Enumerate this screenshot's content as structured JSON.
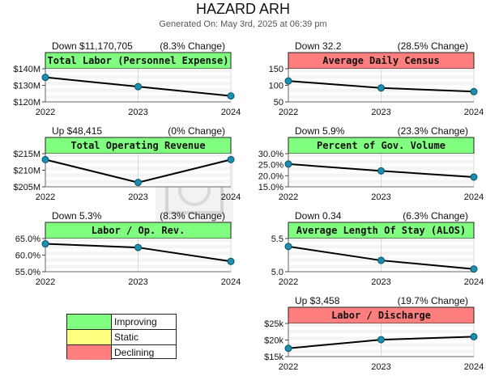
{
  "header": {
    "title": "HAZARD ARH",
    "subtitle": "Generated On: May 3rd, 2025 at 06:39 pm"
  },
  "legend": [
    {
      "label": "Improving",
      "color": "#80ff80"
    },
    {
      "label": "Static",
      "color": "#ffff80"
    },
    {
      "label": "Declining",
      "color": "#ff7f7f"
    }
  ],
  "colors": {
    "improving": "#80ff80",
    "declining": "#ff7f7f",
    "point": "#1a8fb0",
    "line": "#000000"
  },
  "chart_data": [
    {
      "id": "total-labor",
      "type": "line",
      "title": "Total Labor (Personnel Expense)",
      "status": "improving",
      "change_text": "Down $11,170,705",
      "pct_text": "(8.3% Change)",
      "categories": [
        "2022",
        "2023",
        "2024"
      ],
      "values": [
        134.8,
        129.2,
        123.6
      ],
      "ylim": [
        120,
        140
      ],
      "yticks": [
        {
          "value": 140,
          "label": "$140M"
        },
        {
          "value": 130,
          "label": "$130M"
        },
        {
          "value": 120,
          "label": "$120M"
        }
      ]
    },
    {
      "id": "average-daily-census",
      "type": "line",
      "title": "Average Daily Census",
      "status": "declining",
      "change_text": "Down 32.2",
      "pct_text": "(28.5% Change)",
      "categories": [
        "2022",
        "2023",
        "2024"
      ],
      "values": [
        113,
        92,
        81
      ],
      "ylim": [
        50,
        150
      ],
      "yticks": [
        {
          "value": 150,
          "label": "150"
        },
        {
          "value": 100,
          "label": "100"
        },
        {
          "value": 50,
          "label": "50"
        }
      ]
    },
    {
      "id": "total-operating-revenue",
      "type": "line",
      "title": "Total Operating Revenue",
      "status": "improving",
      "change_text": "Up $48,415",
      "pct_text": "(0% Change)",
      "categories": [
        "2022",
        "2023",
        "2024"
      ],
      "values": [
        213.2,
        206.3,
        213.2
      ],
      "ylim": [
        205,
        215
      ],
      "yticks": [
        {
          "value": 215,
          "label": "$215M"
        },
        {
          "value": 210,
          "label": "$210M"
        },
        {
          "value": 205,
          "label": "$205M"
        }
      ]
    },
    {
      "id": "percent-gov-volume",
      "type": "line",
      "title": "Percent of Gov. Volume",
      "status": "improving",
      "change_text": "Down 5.9%",
      "pct_text": "(23.3% Change)",
      "categories": [
        "2022",
        "2023",
        "2024"
      ],
      "values": [
        25.3,
        22.2,
        19.4
      ],
      "ylim": [
        15,
        30
      ],
      "yticks": [
        {
          "value": 30,
          "label": "30.0%"
        },
        {
          "value": 25,
          "label": "25.0%"
        },
        {
          "value": 20,
          "label": "20.0%"
        },
        {
          "value": 15,
          "label": "15.0%"
        }
      ]
    },
    {
      "id": "labor-op-rev",
      "type": "line",
      "title": "Labor / Op. Rev.",
      "status": "improving",
      "change_text": "Down 5.3%",
      "pct_text": "(8.3% Change)",
      "categories": [
        "2022",
        "2023",
        "2024"
      ],
      "values": [
        63.4,
        62.3,
        58.1
      ],
      "ylim": [
        55,
        65
      ],
      "yticks": [
        {
          "value": 65,
          "label": "65.0%"
        },
        {
          "value": 60,
          "label": "60.0%"
        },
        {
          "value": 55,
          "label": "55.0%"
        }
      ]
    },
    {
      "id": "alos",
      "type": "line",
      "title": "Average Length Of Stay (ALOS)",
      "status": "improving",
      "change_text": "Down 0.34",
      "pct_text": "(6.3% Change)",
      "categories": [
        "2022",
        "2023",
        "2024"
      ],
      "values": [
        5.38,
        5.17,
        5.04
      ],
      "ylim": [
        5.0,
        5.5
      ],
      "yticks": [
        {
          "value": 5.5,
          "label": "5.5"
        },
        {
          "value": 5.0,
          "label": "5.0"
        }
      ]
    },
    {
      "id": "labor-discharge",
      "type": "line",
      "title": "Labor / Discharge",
      "status": "declining",
      "change_text": "Up $3,458",
      "pct_text": "(19.7% Change)",
      "categories": [
        "2022",
        "2023",
        "2024"
      ],
      "values": [
        17.5,
        20.1,
        21.0
      ],
      "ylim": [
        15,
        25
      ],
      "yticks": [
        {
          "value": 25,
          "label": "$25k"
        },
        {
          "value": 20,
          "label": "$20k"
        },
        {
          "value": 15,
          "label": "$15k"
        }
      ]
    }
  ]
}
